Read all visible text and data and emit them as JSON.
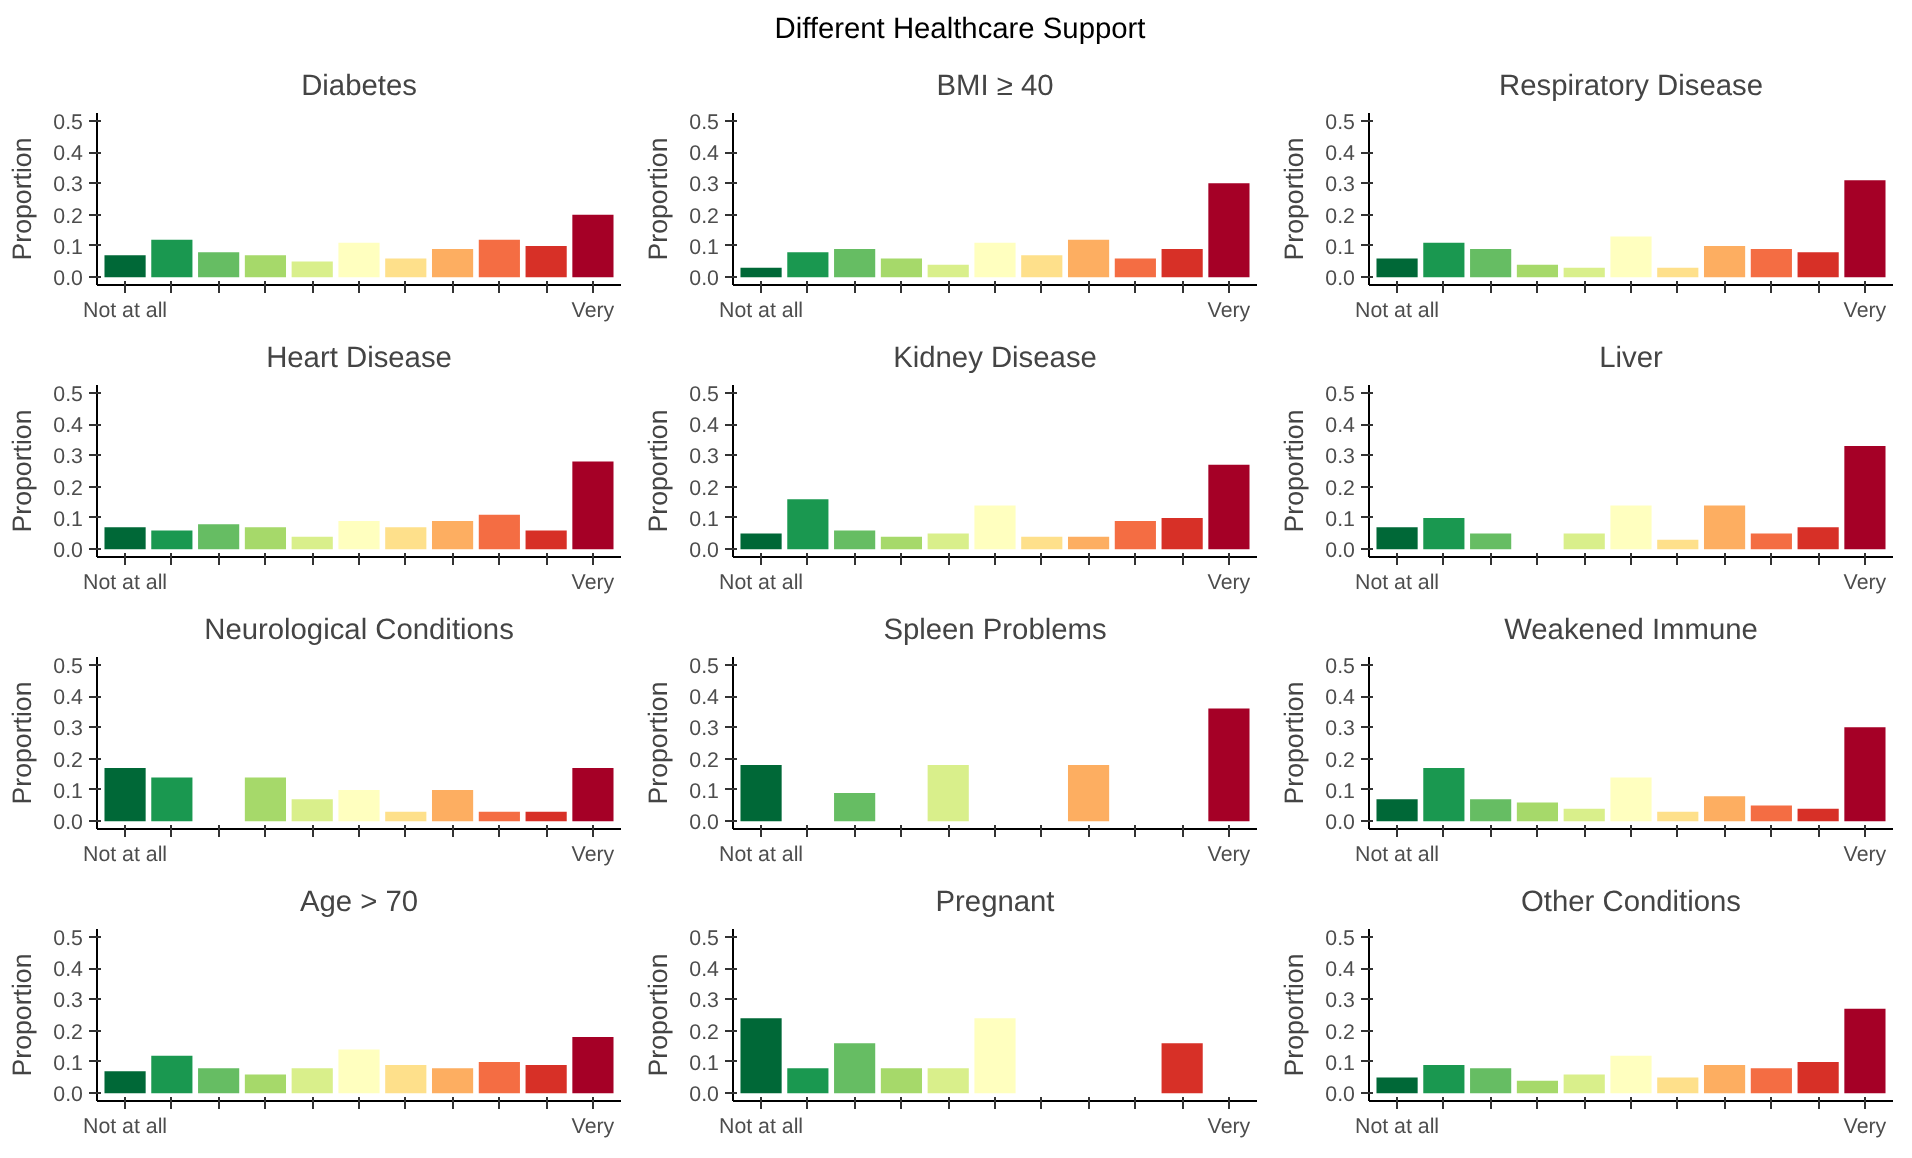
{
  "chart_data": [
    {
      "type": "bar",
      "title": "Diabetes",
      "annotations": [
        "Different Healthcare Support"
      ],
      "ylabel": "Proportion",
      "categories": [
        "Not at all",
        null,
        null,
        null,
        null,
        null,
        null,
        null,
        null,
        null,
        "Very"
      ],
      "values": [
        0.07,
        0.12,
        0.08,
        0.07,
        0.05,
        0.11,
        0.06,
        0.09,
        0.12,
        0.1,
        0.2
      ],
      "colors": [
        "#006837",
        "#1a9850",
        "#66bd63",
        "#a6d96a",
        "#d9ef8b",
        "#ffffbf",
        "#fee08b",
        "#fdae61",
        "#f46d43",
        "#d73027",
        "#a50026"
      ],
      "ylim": [
        -0.025,
        0.525
      ],
      "yticks": [
        {
          "value": 0,
          "label": "0.0"
        },
        {
          "value": 0.1,
          "label": "0.1"
        },
        {
          "value": 0.2,
          "label": "0.2"
        },
        {
          "value": 0.3,
          "label": "0.3"
        },
        {
          "value": 0.4,
          "label": "0.4"
        },
        {
          "value": 0.5,
          "label": "0.5"
        }
      ]
    },
    {
      "type": "bar",
      "title": "BMI ≥ 40",
      "ylabel": "Proportion",
      "categories": [
        "Not at all",
        null,
        null,
        null,
        null,
        null,
        null,
        null,
        null,
        null,
        "Very"
      ],
      "values": [
        0.03,
        0.08,
        0.09,
        0.06,
        0.04,
        0.11,
        0.07,
        0.12,
        0.06,
        0.09,
        0.3
      ],
      "colors": [
        "#006837",
        "#1a9850",
        "#66bd63",
        "#a6d96a",
        "#d9ef8b",
        "#ffffbf",
        "#fee08b",
        "#fdae61",
        "#f46d43",
        "#d73027",
        "#a50026"
      ],
      "ylim": [
        -0.025,
        0.525
      ],
      "yticks": [
        {
          "value": 0,
          "label": "0.0"
        },
        {
          "value": 0.1,
          "label": "0.1"
        },
        {
          "value": 0.2,
          "label": "0.2"
        },
        {
          "value": 0.3,
          "label": "0.3"
        },
        {
          "value": 0.4,
          "label": "0.4"
        },
        {
          "value": 0.5,
          "label": "0.5"
        }
      ]
    },
    {
      "type": "bar",
      "title": "Respiratory Disease",
      "ylabel": "Proportion",
      "categories": [
        "Not at all",
        null,
        null,
        null,
        null,
        null,
        null,
        null,
        null,
        null,
        "Very"
      ],
      "values": [
        0.06,
        0.11,
        0.09,
        0.04,
        0.03,
        0.13,
        0.03,
        0.1,
        0.09,
        0.08,
        0.31
      ],
      "colors": [
        "#006837",
        "#1a9850",
        "#66bd63",
        "#a6d96a",
        "#d9ef8b",
        "#ffffbf",
        "#fee08b",
        "#fdae61",
        "#f46d43",
        "#d73027",
        "#a50026"
      ],
      "ylim": [
        -0.025,
        0.525
      ],
      "yticks": [
        {
          "value": 0,
          "label": "0.0"
        },
        {
          "value": 0.1,
          "label": "0.1"
        },
        {
          "value": 0.2,
          "label": "0.2"
        },
        {
          "value": 0.3,
          "label": "0.3"
        },
        {
          "value": 0.4,
          "label": "0.4"
        },
        {
          "value": 0.5,
          "label": "0.5"
        }
      ]
    },
    {
      "type": "bar",
      "title": "Heart Disease",
      "ylabel": "Proportion",
      "categories": [
        "Not at all",
        null,
        null,
        null,
        null,
        null,
        null,
        null,
        null,
        null,
        "Very"
      ],
      "values": [
        0.07,
        0.06,
        0.08,
        0.07,
        0.04,
        0.09,
        0.07,
        0.09,
        0.11,
        0.06,
        0.28
      ],
      "colors": [
        "#006837",
        "#1a9850",
        "#66bd63",
        "#a6d96a",
        "#d9ef8b",
        "#ffffbf",
        "#fee08b",
        "#fdae61",
        "#f46d43",
        "#d73027",
        "#a50026"
      ],
      "ylim": [
        -0.025,
        0.525
      ],
      "yticks": [
        {
          "value": 0,
          "label": "0.0"
        },
        {
          "value": 0.1,
          "label": "0.1"
        },
        {
          "value": 0.2,
          "label": "0.2"
        },
        {
          "value": 0.3,
          "label": "0.3"
        },
        {
          "value": 0.4,
          "label": "0.4"
        },
        {
          "value": 0.5,
          "label": "0.5"
        }
      ]
    },
    {
      "type": "bar",
      "title": "Kidney Disease",
      "ylabel": "Proportion",
      "categories": [
        "Not at all",
        null,
        null,
        null,
        null,
        null,
        null,
        null,
        null,
        null,
        "Very"
      ],
      "values": [
        0.05,
        0.16,
        0.06,
        0.04,
        0.05,
        0.14,
        0.04,
        0.04,
        0.09,
        0.1,
        0.27
      ],
      "colors": [
        "#006837",
        "#1a9850",
        "#66bd63",
        "#a6d96a",
        "#d9ef8b",
        "#ffffbf",
        "#fee08b",
        "#fdae61",
        "#f46d43",
        "#d73027",
        "#a50026"
      ],
      "ylim": [
        -0.025,
        0.525
      ],
      "yticks": [
        {
          "value": 0,
          "label": "0.0"
        },
        {
          "value": 0.1,
          "label": "0.1"
        },
        {
          "value": 0.2,
          "label": "0.2"
        },
        {
          "value": 0.3,
          "label": "0.3"
        },
        {
          "value": 0.4,
          "label": "0.4"
        },
        {
          "value": 0.5,
          "label": "0.5"
        }
      ]
    },
    {
      "type": "bar",
      "title": "Liver",
      "ylabel": "Proportion",
      "categories": [
        "Not at all",
        null,
        null,
        null,
        null,
        null,
        null,
        null,
        null,
        null,
        "Very"
      ],
      "values": [
        0.07,
        0.1,
        0.05,
        null,
        0.05,
        0.14,
        0.03,
        0.14,
        0.05,
        0.07,
        0.33
      ],
      "colors": [
        "#006837",
        "#1a9850",
        "#66bd63",
        "#a6d96a",
        "#d9ef8b",
        "#ffffbf",
        "#fee08b",
        "#fdae61",
        "#f46d43",
        "#d73027",
        "#a50026"
      ],
      "ylim": [
        -0.025,
        0.525
      ],
      "yticks": [
        {
          "value": 0,
          "label": "0.0"
        },
        {
          "value": 0.1,
          "label": "0.1"
        },
        {
          "value": 0.2,
          "label": "0.2"
        },
        {
          "value": 0.3,
          "label": "0.3"
        },
        {
          "value": 0.4,
          "label": "0.4"
        },
        {
          "value": 0.5,
          "label": "0.5"
        }
      ]
    },
    {
      "type": "bar",
      "title": "Neurological Conditions",
      "ylabel": "Proportion",
      "categories": [
        "Not at all",
        null,
        null,
        null,
        null,
        null,
        null,
        null,
        null,
        null,
        "Very"
      ],
      "values": [
        0.17,
        0.14,
        null,
        0.14,
        0.07,
        0.1,
        0.03,
        0.1,
        0.03,
        0.03,
        0.17
      ],
      "colors": [
        "#006837",
        "#1a9850",
        "#66bd63",
        "#a6d96a",
        "#d9ef8b",
        "#ffffbf",
        "#fee08b",
        "#fdae61",
        "#f46d43",
        "#d73027",
        "#a50026"
      ],
      "ylim": [
        -0.025,
        0.525
      ],
      "yticks": [
        {
          "value": 0,
          "label": "0.0"
        },
        {
          "value": 0.1,
          "label": "0.1"
        },
        {
          "value": 0.2,
          "label": "0.2"
        },
        {
          "value": 0.3,
          "label": "0.3"
        },
        {
          "value": 0.4,
          "label": "0.4"
        },
        {
          "value": 0.5,
          "label": "0.5"
        }
      ]
    },
    {
      "type": "bar",
      "title": "Spleen Problems",
      "ylabel": "Proportion",
      "categories": [
        "Not at all",
        null,
        null,
        null,
        null,
        null,
        null,
        null,
        null,
        null,
        "Very"
      ],
      "values": [
        0.18,
        null,
        0.09,
        null,
        0.18,
        null,
        null,
        0.18,
        null,
        null,
        0.36
      ],
      "colors": [
        "#006837",
        "#1a9850",
        "#66bd63",
        "#a6d96a",
        "#d9ef8b",
        "#ffffbf",
        "#fee08b",
        "#fdae61",
        "#f46d43",
        "#d73027",
        "#a50026"
      ],
      "ylim": [
        -0.025,
        0.525
      ],
      "yticks": [
        {
          "value": 0,
          "label": "0.0"
        },
        {
          "value": 0.1,
          "label": "0.1"
        },
        {
          "value": 0.2,
          "label": "0.2"
        },
        {
          "value": 0.3,
          "label": "0.3"
        },
        {
          "value": 0.4,
          "label": "0.4"
        },
        {
          "value": 0.5,
          "label": "0.5"
        }
      ]
    },
    {
      "type": "bar",
      "title": "Weakened Immune",
      "ylabel": "Proportion",
      "categories": [
        "Not at all",
        null,
        null,
        null,
        null,
        null,
        null,
        null,
        null,
        null,
        "Very"
      ],
      "values": [
        0.07,
        0.17,
        0.07,
        0.06,
        0.04,
        0.14,
        0.03,
        0.08,
        0.05,
        0.04,
        0.3
      ],
      "colors": [
        "#006837",
        "#1a9850",
        "#66bd63",
        "#a6d96a",
        "#d9ef8b",
        "#ffffbf",
        "#fee08b",
        "#fdae61",
        "#f46d43",
        "#d73027",
        "#a50026"
      ],
      "ylim": [
        -0.025,
        0.525
      ],
      "yticks": [
        {
          "value": 0,
          "label": "0.0"
        },
        {
          "value": 0.1,
          "label": "0.1"
        },
        {
          "value": 0.2,
          "label": "0.2"
        },
        {
          "value": 0.3,
          "label": "0.3"
        },
        {
          "value": 0.4,
          "label": "0.4"
        },
        {
          "value": 0.5,
          "label": "0.5"
        }
      ]
    },
    {
      "type": "bar",
      "title": "Age > 70",
      "ylabel": "Proportion",
      "categories": [
        "Not at all",
        null,
        null,
        null,
        null,
        null,
        null,
        null,
        null,
        null,
        "Very"
      ],
      "values": [
        0.07,
        0.12,
        0.08,
        0.06,
        0.08,
        0.14,
        0.09,
        0.08,
        0.1,
        0.09,
        0.18
      ],
      "colors": [
        "#006837",
        "#1a9850",
        "#66bd63",
        "#a6d96a",
        "#d9ef8b",
        "#ffffbf",
        "#fee08b",
        "#fdae61",
        "#f46d43",
        "#d73027",
        "#a50026"
      ],
      "ylim": [
        -0.025,
        0.525
      ],
      "yticks": [
        {
          "value": 0,
          "label": "0.0"
        },
        {
          "value": 0.1,
          "label": "0.1"
        },
        {
          "value": 0.2,
          "label": "0.2"
        },
        {
          "value": 0.3,
          "label": "0.3"
        },
        {
          "value": 0.4,
          "label": "0.4"
        },
        {
          "value": 0.5,
          "label": "0.5"
        }
      ]
    },
    {
      "type": "bar",
      "title": "Pregnant",
      "ylabel": "Proportion",
      "categories": [
        "Not at all",
        null,
        null,
        null,
        null,
        null,
        null,
        null,
        null,
        null,
        "Very"
      ],
      "values": [
        0.24,
        0.08,
        0.16,
        0.08,
        0.08,
        0.24,
        null,
        null,
        null,
        0.16,
        null
      ],
      "colors": [
        "#006837",
        "#1a9850",
        "#66bd63",
        "#a6d96a",
        "#d9ef8b",
        "#ffffbf",
        "#fee08b",
        "#fdae61",
        "#f46d43",
        "#d73027",
        "#a50026"
      ],
      "ylim": [
        -0.025,
        0.525
      ],
      "yticks": [
        {
          "value": 0,
          "label": "0.0"
        },
        {
          "value": 0.1,
          "label": "0.1"
        },
        {
          "value": 0.2,
          "label": "0.2"
        },
        {
          "value": 0.3,
          "label": "0.3"
        },
        {
          "value": 0.4,
          "label": "0.4"
        },
        {
          "value": 0.5,
          "label": "0.5"
        }
      ]
    },
    {
      "type": "bar",
      "title": "Other Conditions",
      "ylabel": "Proportion",
      "categories": [
        "Not at all",
        null,
        null,
        null,
        null,
        null,
        null,
        null,
        null,
        null,
        "Very"
      ],
      "values": [
        0.05,
        0.09,
        0.08,
        0.04,
        0.06,
        0.12,
        0.05,
        0.09,
        0.08,
        0.1,
        0.27
      ],
      "colors": [
        "#006837",
        "#1a9850",
        "#66bd63",
        "#a6d96a",
        "#d9ef8b",
        "#ffffbf",
        "#fee08b",
        "#fdae61",
        "#f46d43",
        "#d73027",
        "#a50026"
      ],
      "ylim": [
        -0.025,
        0.525
      ],
      "yticks": [
        {
          "value": 0,
          "label": "0.0"
        },
        {
          "value": 0.1,
          "label": "0.1"
        },
        {
          "value": 0.2,
          "label": "0.2"
        },
        {
          "value": 0.3,
          "label": "0.3"
        },
        {
          "value": 0.4,
          "label": "0.4"
        },
        {
          "value": 0.5,
          "label": "0.5"
        }
      ]
    }
  ]
}
